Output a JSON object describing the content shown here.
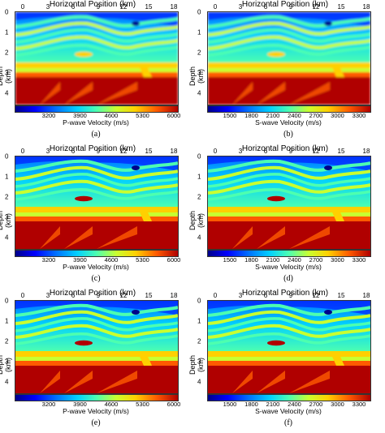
{
  "figure": {
    "x_axis_title": "Horizontal Position (km)",
    "y_axis_title": "Depth (km)",
    "x_ticks": [
      "0",
      "3",
      "6",
      "9",
      "12",
      "15",
      "18"
    ],
    "y_ticks": [
      "0",
      "1",
      "2",
      "3",
      "4"
    ],
    "colormap_colors": [
      "#00008a",
      "#0000ff",
      "#0070ff",
      "#00d0ff",
      "#4dffb0",
      "#c8ff30",
      "#ffd000",
      "#ff5a00",
      "#b00000"
    ],
    "p_colorbar": {
      "title": "P-wave Velocity (m/s)",
      "ticks": [
        "3200",
        "3900",
        "4600",
        "5300",
        "6000"
      ]
    },
    "s_colorbar": {
      "title": "S-wave Velocity (m/s)",
      "ticks": [
        "1500",
        "1800",
        "2100",
        "2400",
        "2700",
        "3000",
        "3300"
      ]
    },
    "panels": [
      {
        "label": "(a)",
        "wave": "P",
        "style": "smooth"
      },
      {
        "label": "(b)",
        "wave": "S",
        "style": "smooth"
      },
      {
        "label": "(c)",
        "wave": "P",
        "style": "sharp"
      },
      {
        "label": "(d)",
        "wave": "S",
        "style": "sharp"
      },
      {
        "label": "(e)",
        "wave": "P",
        "style": "sharp"
      },
      {
        "label": "(f)",
        "wave": "S",
        "style": "sharp"
      }
    ]
  }
}
